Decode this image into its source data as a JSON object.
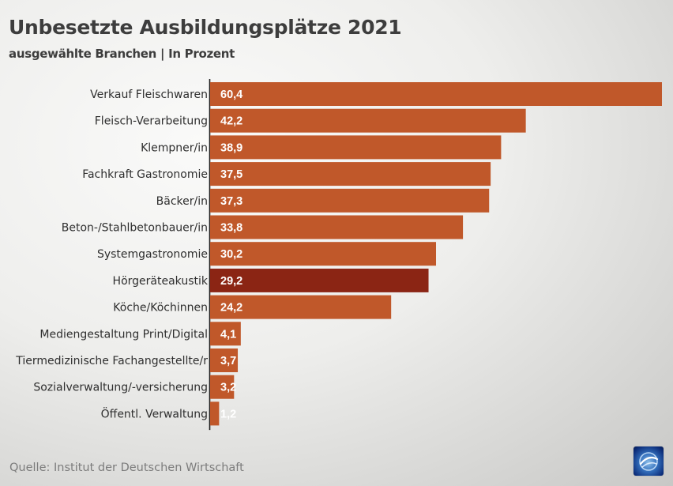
{
  "header": {
    "title": "Unbesetzte Ausbildungsplätze 2021",
    "subtitle": "ausgewählte Branchen | In Prozent"
  },
  "footer": {
    "source": "Quelle: Institut der Deutschen Wirtschaft"
  },
  "logo": {
    "icon": "broadcaster-globe-logo"
  },
  "colors": {
    "bar": "#c0582a",
    "highlight": "#8b2514",
    "axis": "#1e1e1e"
  },
  "chart_data": {
    "type": "bar",
    "orientation": "horizontal",
    "title": "Unbesetzte Ausbildungsplätze 2021",
    "subtitle": "ausgewählte Branchen | In Prozent",
    "categories": [
      "Verkauf Fleischwaren",
      "Fleisch-Verarbeitung",
      "Klempner/in",
      "Fachkraft Gastronomie",
      "Bäcker/in",
      "Beton-/Stahlbetonbauer/in",
      "Systemgastronomie",
      "Hörgeräteakustik",
      "Köche/Köchinnen",
      "Mediengestaltung Print/Digital",
      "Tiermedizinische Fachangestellte/r",
      "Sozialverwaltung/-versicherung",
      "Öffentl. Verwaltung"
    ],
    "values": [
      60.4,
      42.2,
      38.9,
      37.5,
      37.3,
      33.8,
      30.2,
      29.2,
      24.2,
      4.1,
      3.7,
      3.2,
      1.2
    ],
    "value_labels": [
      "60,4",
      "42,2",
      "38,9",
      "37,5",
      "37,3",
      "33,8",
      "30,2",
      "29,2",
      "24,2",
      "4,1",
      "3,7",
      "3,2",
      "1,2"
    ],
    "highlighted": "Hörgeräteakustik",
    "xlim": [
      0,
      60.4
    ],
    "grid": false,
    "source": "Quelle: Institut der Deutschen Wirtschaft"
  }
}
